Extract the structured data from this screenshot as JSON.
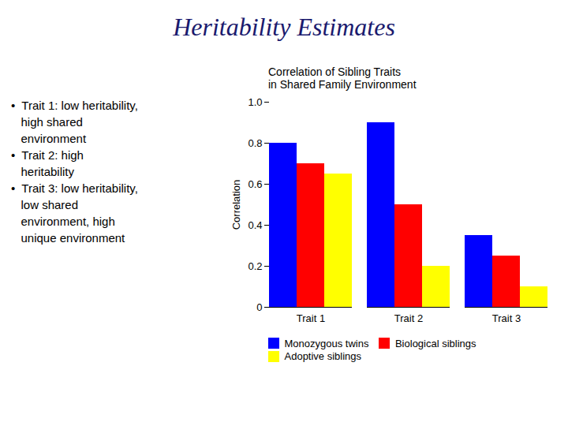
{
  "chart_data": {
    "type": "bar",
    "title": "Heritability Estimates",
    "subtitle": "Correlation of Sibling Traits\nin Shared Family Environment",
    "annotations": [
      "•  Trait 1: low heritability,\n   high shared\n   environment\n•  Trait 2: high\n   heritability\n•  Trait 3: low heritability,\n   low shared\n   environment, high\n   unique environment"
    ],
    "ylabel": "Correlation",
    "categories": [
      "Trait 1",
      "Trait 2",
      "Trait 3"
    ],
    "series": [
      {
        "name": "Monozygous twins",
        "color": "#0000FF",
        "values": [
          0.8,
          0.9,
          0.35
        ]
      },
      {
        "name": "Biological siblings",
        "color": "#FF0000",
        "values": [
          0.7,
          0.5,
          0.25
        ]
      },
      {
        "name": "Adoptive siblings",
        "color": "#FFFF00",
        "values": [
          0.65,
          0.2,
          0.1
        ]
      }
    ],
    "ylim": [
      0,
      1.0
    ],
    "yticks": [
      0,
      0.2,
      0.4,
      0.6,
      0.8,
      {
        "value": 1.0,
        "label": "1.0"
      }
    ],
    "grid": false
  }
}
